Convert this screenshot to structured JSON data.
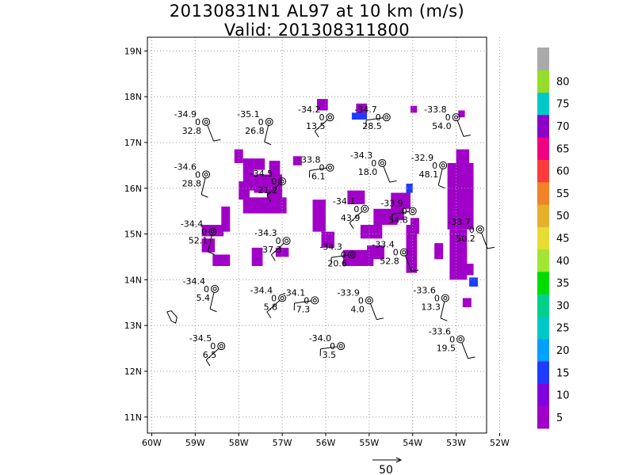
{
  "title": {
    "line1": "20130831N1 AL97 at 10 km (m/s)",
    "line2": "Valid: 201308311800"
  },
  "axes": {
    "lon_ticks": [
      {
        "value": -60,
        "label": "60W"
      },
      {
        "value": -59,
        "label": "59W"
      },
      {
        "value": -58,
        "label": "58W"
      },
      {
        "value": -57,
        "label": "57W"
      },
      {
        "value": -56,
        "label": "56W"
      },
      {
        "value": -55,
        "label": "55W"
      },
      {
        "value": -54,
        "label": "54W"
      },
      {
        "value": -53,
        "label": "53W"
      },
      {
        "value": -52,
        "label": "52W"
      }
    ],
    "lat_ticks": [
      {
        "value": 11,
        "label": "11N"
      },
      {
        "value": 12,
        "label": "12N"
      },
      {
        "value": 13,
        "label": "13N"
      },
      {
        "value": 14,
        "label": "14N"
      },
      {
        "value": 15,
        "label": "15N"
      },
      {
        "value": 16,
        "label": "16N"
      },
      {
        "value": 17,
        "label": "17N"
      },
      {
        "value": 18,
        "label": "18N"
      },
      {
        "value": 19,
        "label": "19N"
      }
    ],
    "lon_range": [
      -60.1,
      -52.3
    ],
    "lat_range": [
      10.65,
      19.3
    ],
    "grid": "dotted"
  },
  "colorbar": {
    "labels": [
      "5",
      "10",
      "15",
      "20",
      "25",
      "30",
      "35",
      "40",
      "45",
      "50",
      "55",
      "60",
      "65",
      "70",
      "75",
      "80"
    ],
    "colors": [
      "#a000c8",
      "#8200dc",
      "#1e3cff",
      "#00a0ff",
      "#00c8c8",
      "#00d28c",
      "#00dc00",
      "#a0e632",
      "#e6dc32",
      "#e6af2d",
      "#f08228",
      "#fa3c3c",
      "#f00082",
      "#8c00c8",
      "#00c8c8",
      "#96dc28",
      "#aaaaaa"
    ]
  },
  "reference_vector": {
    "label": "50"
  },
  "stations": [
    {
      "lon": -58.75,
      "lat": 17.45,
      "top": "-34.9",
      "mid": "0",
      "bottom": "32.8"
    },
    {
      "lon": -57.3,
      "lat": 17.45,
      "top": "-35.1",
      "mid": "0",
      "bottom": "26.8"
    },
    {
      "lon": -55.9,
      "lat": 17.55,
      "top": "-34.2",
      "mid": "0",
      "bottom": "13.5"
    },
    {
      "lon": -54.6,
      "lat": 17.55,
      "top": "-34.7",
      "mid": "0",
      "bottom": "28.5"
    },
    {
      "lon": -53.0,
      "lat": 17.55,
      "top": "-33.8",
      "mid": "0",
      "bottom": "54.0"
    },
    {
      "lon": -58.75,
      "lat": 16.3,
      "top": "-34.6",
      "mid": "0",
      "bottom": "28.8"
    },
    {
      "lon": -57.0,
      "lat": 16.15,
      "top": "-34.5",
      "mid": "0",
      "bottom": "21.2"
    },
    {
      "lon": -55.9,
      "lat": 16.45,
      "top": "-33.8",
      "mid": "0",
      "bottom": "6.1"
    },
    {
      "lon": -54.7,
      "lat": 16.55,
      "top": "-34.3",
      "mid": "0",
      "bottom": "18.0"
    },
    {
      "lon": -53.3,
      "lat": 16.5,
      "top": "-32.9",
      "mid": "0",
      "bottom": "48.1"
    },
    {
      "lon": -55.1,
      "lat": 15.55,
      "top": "-34.1",
      "mid": "0",
      "bottom": "43.9"
    },
    {
      "lon": -54.0,
      "lat": 15.5,
      "top": "-33.9",
      "mid": "0",
      "bottom": "54.8"
    },
    {
      "lon": -52.45,
      "lat": 15.1,
      "top": "-33.7",
      "mid": "0",
      "bottom": "50.2"
    },
    {
      "lon": -58.6,
      "lat": 15.05,
      "top": "-34.4",
      "mid": "0",
      "bottom": "52.1"
    },
    {
      "lon": -56.9,
      "lat": 14.85,
      "top": "-34.3",
      "mid": "0",
      "bottom": "37.3"
    },
    {
      "lon": -55.4,
      "lat": 14.55,
      "top": "-34.3",
      "mid": "0",
      "bottom": "20.6"
    },
    {
      "lon": -54.2,
      "lat": 14.6,
      "top": "-33.4",
      "mid": "0",
      "bottom": "52.8"
    },
    {
      "lon": -58.55,
      "lat": 13.8,
      "top": "-34.4",
      "mid": "0",
      "bottom": "5.4"
    },
    {
      "lon": -57.0,
      "lat": 13.6,
      "top": "-34.4",
      "mid": "0",
      "bottom": "5.8"
    },
    {
      "lon": -56.25,
      "lat": 13.55,
      "top": "-34.1",
      "mid": "0",
      "bottom": "7.3"
    },
    {
      "lon": -55.0,
      "lat": 13.55,
      "top": "-33.9",
      "mid": "0",
      "bottom": "4.0"
    },
    {
      "lon": -53.25,
      "lat": 13.6,
      "top": "-33.6",
      "mid": "0",
      "bottom": "13.3"
    },
    {
      "lon": -58.4,
      "lat": 12.55,
      "top": "-34.5",
      "mid": "0",
      "bottom": "6.5"
    },
    {
      "lon": -55.65,
      "lat": 12.55,
      "top": "-34.0",
      "mid": "0",
      "bottom": "3.5"
    },
    {
      "lon": -52.9,
      "lat": 12.7,
      "top": "-33.6",
      "mid": "0",
      "bottom": "19.5"
    }
  ],
  "shaded_regions": [
    {
      "color": "#a000c8",
      "cells": [
        [
          -57.65,
          16.4,
          0.25,
          0.25
        ],
        [
          -57.9,
          15.95,
          0.25,
          0.7
        ],
        [
          -58.0,
          15.75,
          0.25,
          0.4
        ],
        [
          -57.65,
          15.9,
          0.65,
          0.4
        ],
        [
          -57.35,
          15.5,
          0.35,
          0.45
        ],
        [
          -57.9,
          15.45,
          1.0,
          0.35
        ],
        [
          -58.4,
          15.05,
          0.2,
          0.55
        ],
        [
          -58.85,
          14.95,
          0.5,
          0.25
        ],
        [
          -58.85,
          14.6,
          0.3,
          0.3
        ],
        [
          -58.6,
          14.3,
          0.4,
          0.25
        ],
        [
          -57.7,
          14.3,
          0.25,
          0.4
        ],
        [
          -57.15,
          14.5,
          0.3,
          0.2
        ],
        [
          -56.3,
          15.05,
          0.3,
          0.7
        ],
        [
          -56.1,
          14.7,
          0.3,
          0.35
        ],
        [
          -56.75,
          16.5,
          0.2,
          0.2
        ],
        [
          -56.2,
          17.7,
          0.25,
          0.25
        ],
        [
          -55.6,
          14.3,
          0.7,
          0.35
        ],
        [
          -55.2,
          14.9,
          0.5,
          0.3
        ],
        [
          -55.05,
          14.45,
          0.4,
          0.3
        ],
        [
          -54.9,
          15.2,
          0.55,
          0.35
        ],
        [
          -55.5,
          15.65,
          0.4,
          0.3
        ],
        [
          -54.5,
          15.3,
          0.3,
          0.6
        ],
        [
          -54.3,
          15.55,
          0.25,
          0.35
        ],
        [
          -54.15,
          14.15,
          0.25,
          1.05
        ],
        [
          -54.05,
          15.0,
          0.2,
          0.35
        ],
        [
          -53.5,
          14.45,
          0.2,
          0.35
        ],
        [
          -53.0,
          16.55,
          0.3,
          0.3
        ],
        [
          -53.2,
          15.1,
          0.6,
          1.45
        ],
        [
          -53.15,
          14.0,
          0.4,
          1.1
        ],
        [
          -52.85,
          14.1,
          0.25,
          0.25
        ],
        [
          -52.85,
          13.4,
          0.2,
          0.2
        ],
        [
          -58.1,
          16.55,
          0.2,
          0.3
        ],
        [
          -57.3,
          16.05,
          0.25,
          0.55
        ],
        [
          -55.3,
          17.6,
          0.25,
          0.25
        ],
        [
          -54.05,
          17.65,
          0.15,
          0.15
        ],
        [
          -52.95,
          17.55,
          0.15,
          0.15
        ]
      ]
    },
    {
      "color": "#1e3cff",
      "cells": [
        [
          -55.4,
          17.5,
          0.35,
          0.15
        ],
        [
          -54.15,
          15.9,
          0.15,
          0.2
        ],
        [
          -52.7,
          13.85,
          0.2,
          0.2
        ]
      ]
    }
  ],
  "coastline": {
    "island": [
      [
        -59.65,
        13.3
      ],
      [
        -59.55,
        13.1
      ],
      [
        -59.45,
        13.05
      ],
      [
        -59.42,
        13.18
      ],
      [
        -59.55,
        13.32
      ],
      [
        -59.65,
        13.3
      ]
    ]
  }
}
